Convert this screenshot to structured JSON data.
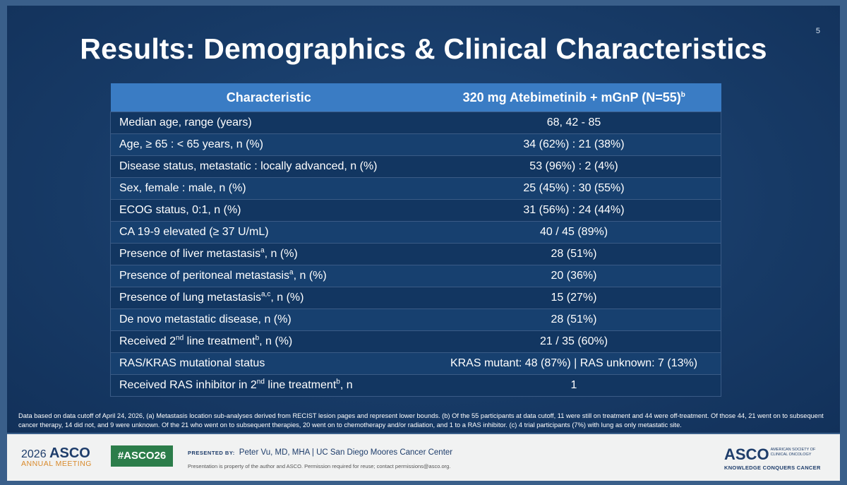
{
  "slide": {
    "number": "5",
    "title": "Results: Demographics & Clinical Characteristics"
  },
  "table": {
    "headers": {
      "col1": "Characteristic",
      "col2": "320 mg Atebimetinib + mGnP (N=55)",
      "col2_sup": "b"
    },
    "rows": [
      {
        "label": "Median age, range (years)",
        "value": "68, 42 - 85"
      },
      {
        "label": "Age, ≥ 65 : < 65 years, n (%)",
        "value": "34 (62%) : 21 (38%)"
      },
      {
        "label": "Disease status, metastatic : locally advanced, n (%)",
        "value": "53 (96%) : 2 (4%)"
      },
      {
        "label": "Sex, female : male, n (%)",
        "value": "25 (45%) : 30 (55%)"
      },
      {
        "label": "ECOG status, 0:1, n (%)",
        "value": "31 (56%) : 24 (44%)"
      },
      {
        "label": "CA 19-9 elevated (≥ 37 U/mL)",
        "value": "40 / 45 (89%)"
      },
      {
        "label_pre": "Presence of liver metastasis",
        "sup": "a",
        "label_post": ", n (%)",
        "value": "28 (51%)"
      },
      {
        "label_pre": "Presence of peritoneal metastasis",
        "sup": "a",
        "label_post": ", n (%)",
        "value": "20 (36%)"
      },
      {
        "label_pre": "Presence of lung metastasis",
        "sup": "a,c",
        "label_post": ", n (%)",
        "value": "15 (27%)"
      },
      {
        "label": "De novo metastatic disease, n (%)",
        "value": "28 (51%)"
      },
      {
        "label_pre": "Received 2",
        "sup": "nd",
        "label_mid": " line treatment",
        "sup2": "b",
        "label_post": ", n (%)",
        "value": "21 / 35 (60%)"
      },
      {
        "label": "RAS/KRAS mutational status",
        "value": "KRAS mutant: 48 (87%) | RAS unknown: 7 (13%)"
      },
      {
        "label_pre": "Received RAS inhibitor in 2",
        "sup": "nd",
        "label_mid": " line treatment",
        "sup2": "b",
        "label_post": ", n",
        "value": "1"
      }
    ]
  },
  "footnote": "Data based on data cutoff of April 24, 2026, (a) Metastasis location sub-analyses derived from RECIST lesion pages and represent lower bounds. (b) Of the 55 participants at data cutoff, 11 were still on treatment and 44 were off-treatment. Of those 44, 21 went on to subsequent cancer therapy, 14 did not, and 9 were unknown. Of the 21 who went on to subsequent therapies, 20 went on to chemotherapy and/or radiation, and 1 to a RAS inhibitor. (c) 4 trial participants (7%) with lung as only metastatic site.",
  "footer": {
    "meeting_year": "2026",
    "meeting_brand": "ASCO",
    "meeting_sub": "ANNUAL MEETING",
    "hashtag": "#ASCO26",
    "presented_label": "PRESENTED BY:",
    "presenter": "Peter Vu, MD, MHA  | UC San Diego Moores Cancer Center",
    "property_note": "Presentation is property of the author and ASCO. Permission required for reuse; contact permissions@asco.org.",
    "org_brand": "ASCO",
    "org_name_1": "AMERICAN SOCIETY OF",
    "org_name_2": "CLINICAL ONCOLOGY",
    "org_tagline": "KNOWLEDGE CONQUERS CANCER"
  },
  "colors": {
    "slide_bg": "#173a66",
    "header_bg": "#3a7cc4",
    "row_odd": "#123661",
    "row_even": "#17406f",
    "hashtag_bg": "#2c7d4a",
    "accent_orange": "#d98a2b"
  }
}
